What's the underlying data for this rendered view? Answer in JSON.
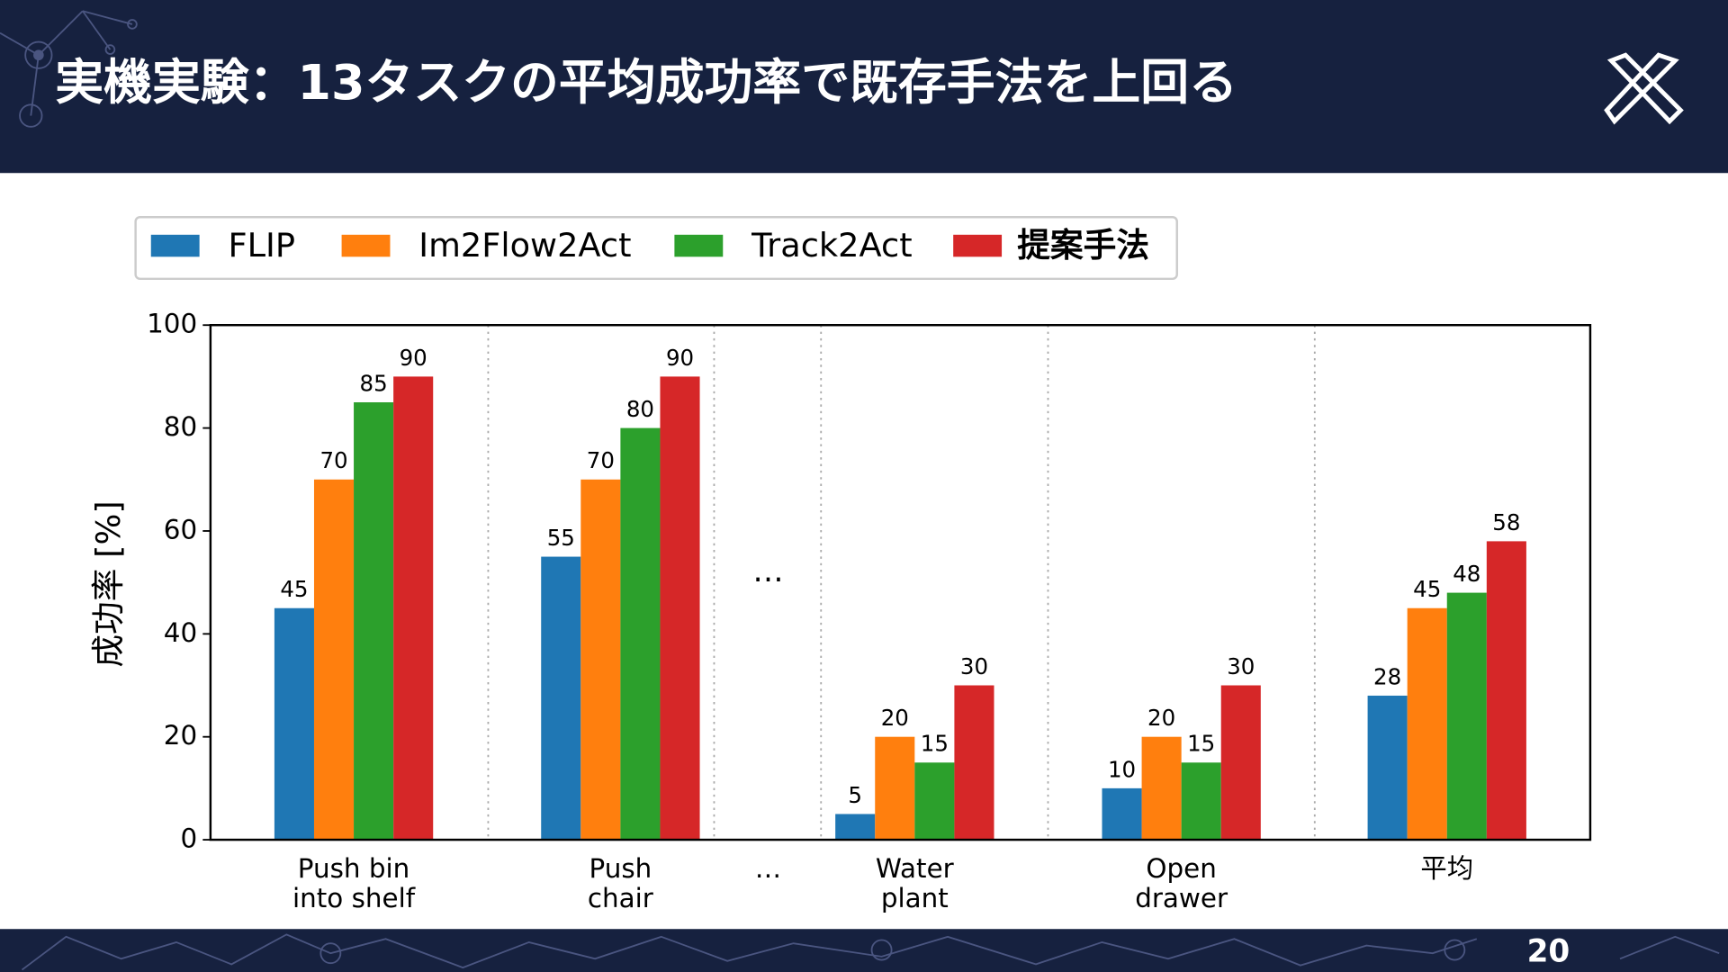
{
  "header": {
    "title": "実機実験：13タスクの平均成功率で既存手法を上回る"
  },
  "page_number": "20",
  "chart_data": {
    "type": "bar",
    "ylabel": "成功率 [%]",
    "categories": [
      [
        "Push bin",
        "into shelf"
      ],
      [
        "Push",
        "chair"
      ],
      [
        "…"
      ],
      [
        "Water",
        "plant"
      ],
      [
        "Open",
        "drawer"
      ],
      [
        "平均"
      ]
    ],
    "series": [
      {
        "name": "FLIP",
        "color": "#1f77b4",
        "values": [
          45,
          55,
          null,
          5,
          10,
          28
        ]
      },
      {
        "name": "Im2Flow2Act",
        "color": "#ff7f0e",
        "values": [
          70,
          70,
          null,
          20,
          20,
          45
        ]
      },
      {
        "name": "Track2Act",
        "color": "#2ca02c",
        "values": [
          85,
          80,
          null,
          15,
          15,
          48
        ]
      },
      {
        "name": "提案手法",
        "color": "#d62728",
        "values": [
          90,
          90,
          null,
          30,
          30,
          58
        ]
      }
    ],
    "ylim": [
      0,
      100
    ],
    "yticks": [
      0,
      20,
      40,
      60,
      80,
      100
    ],
    "grid": false,
    "legend": "top",
    "annotation": "…"
  }
}
